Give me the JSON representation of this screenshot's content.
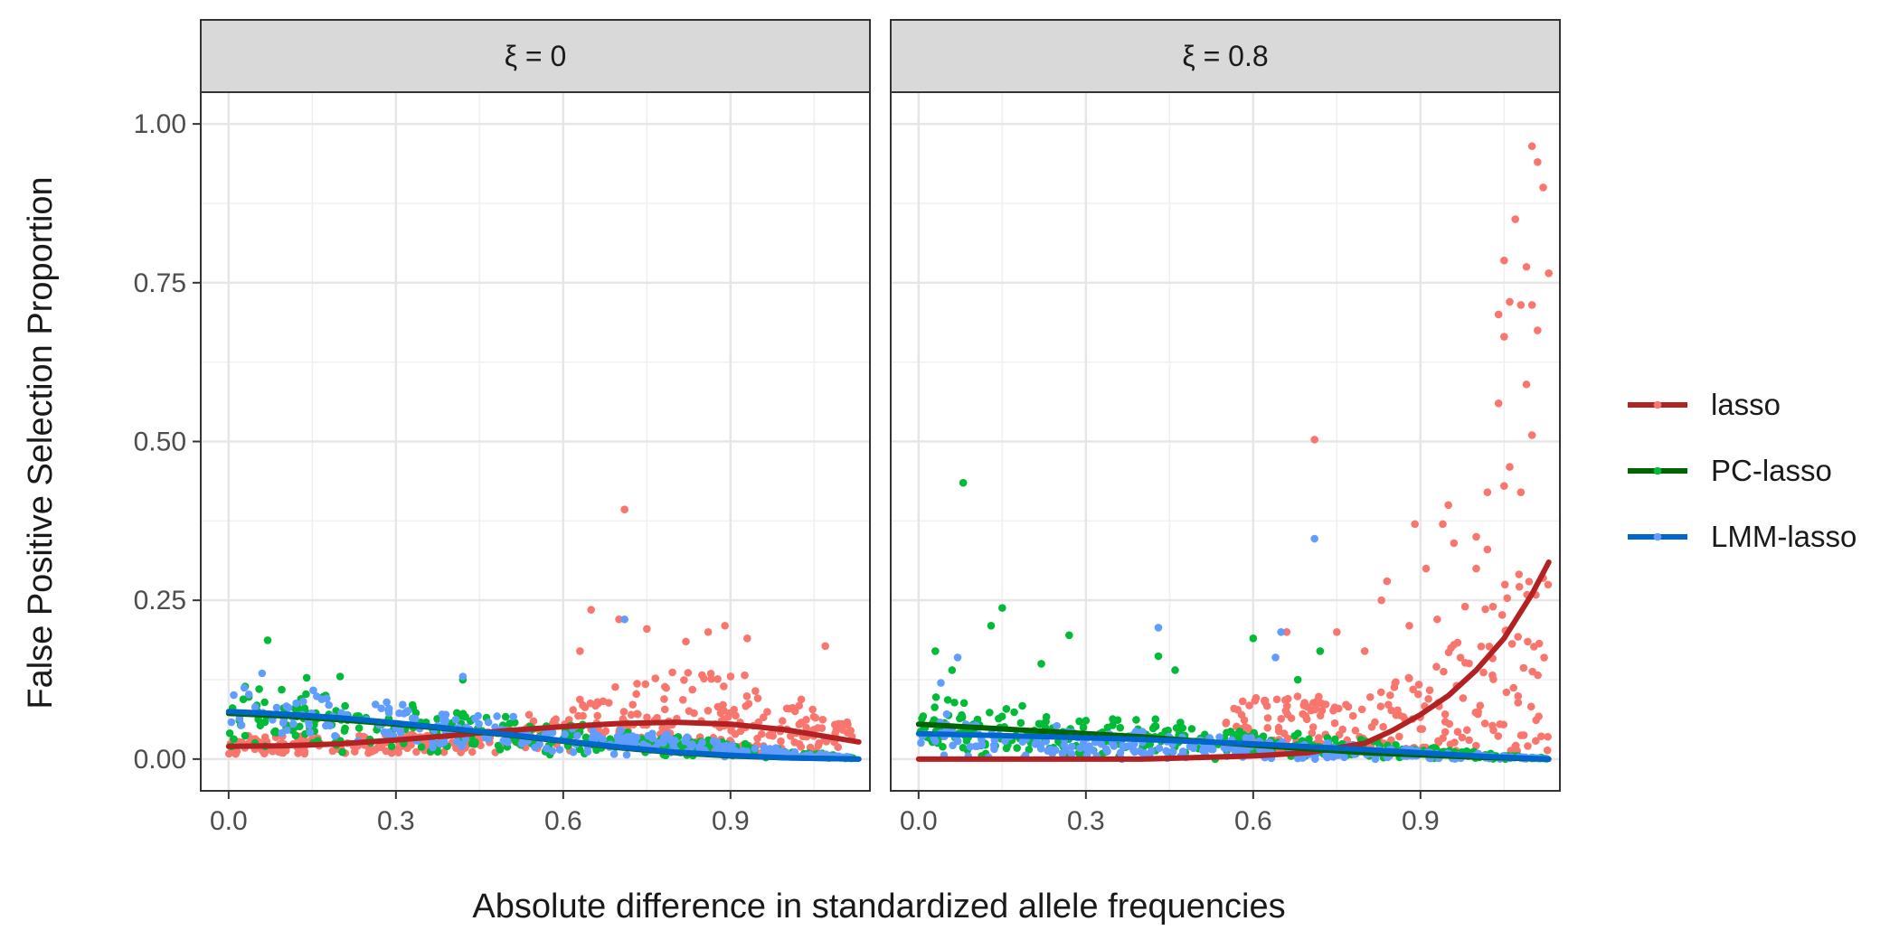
{
  "chart_data": {
    "type": "scatter",
    "title": "",
    "xlabel": "Absolute difference in standardized allele frequencies",
    "ylabel": "False Positive Selection Proportion",
    "xlim": [
      -0.05,
      1.15
    ],
    "ylim": [
      -0.05,
      1.05
    ],
    "x_ticks": [
      "0.0",
      "0.3",
      "0.6",
      "0.9"
    ],
    "y_ticks": [
      "0.00",
      "0.25",
      "0.50",
      "0.75",
      "1.00"
    ],
    "grid": true,
    "legend_position": "right",
    "series": [
      {
        "name": "lasso",
        "color": "#B22222",
        "point_color": "#F8766D"
      },
      {
        "name": "PC-lasso",
        "color": "#006400",
        "point_color": "#00BA38"
      },
      {
        "name": "LMM-lasso",
        "color": "#0066CC",
        "point_color": "#619CFF"
      }
    ],
    "panels": [
      {
        "label": "ξ = 0",
        "smooth": {
          "lasso": {
            "x": [
              0.0,
              0.1,
              0.2,
              0.3,
              0.4,
              0.5,
              0.6,
              0.7,
              0.8,
              0.9,
              1.0,
              1.13
            ],
            "y": [
              0.02,
              0.021,
              0.024,
              0.03,
              0.037,
              0.045,
              0.051,
              0.056,
              0.058,
              0.055,
              0.046,
              0.027
            ]
          },
          "PC-lasso": {
            "x": [
              0.0,
              0.1,
              0.2,
              0.3,
              0.4,
              0.5,
              0.6,
              0.7,
              0.8,
              0.9,
              1.0,
              1.13
            ],
            "y": [
              0.072,
              0.068,
              0.062,
              0.055,
              0.047,
              0.038,
              0.028,
              0.018,
              0.01,
              0.005,
              0.002,
              0.0
            ]
          },
          "LMM-lasso": {
            "x": [
              0.0,
              0.1,
              0.2,
              0.3,
              0.4,
              0.5,
              0.6,
              0.7,
              0.8,
              0.9,
              1.0,
              1.13
            ],
            "y": [
              0.075,
              0.071,
              0.065,
              0.057,
              0.048,
              0.039,
              0.029,
              0.019,
              0.011,
              0.006,
              0.002,
              0.0
            ]
          }
        },
        "points": {
          "lasso": [
            [
              0.71,
              0.393
            ],
            [
              0.65,
              0.235
            ],
            [
              0.7,
              0.22
            ],
            [
              0.75,
              0.205
            ],
            [
              0.89,
              0.21
            ],
            [
              0.93,
              0.19
            ],
            [
              0.86,
              0.2
            ],
            [
              1.07,
              0.178
            ],
            [
              0.63,
              0.17
            ],
            [
              0.82,
              0.185
            ]
          ],
          "PC-lasso": [
            [
              0.07,
              0.187
            ],
            [
              0.14,
              0.128
            ],
            [
              0.2,
              0.13
            ],
            [
              0.42,
              0.125
            ]
          ],
          "LMM-lasso": [
            [
              0.71,
              0.22
            ],
            [
              0.06,
              0.135
            ],
            [
              0.42,
              0.13
            ]
          ]
        },
        "clouds": {
          "lasso": {
            "x0": 0.0,
            "x1": 1.12,
            "base": 0.02,
            "band": 0.05,
            "n": 420
          },
          "PC-lasso": {
            "x0": 0.0,
            "x1": 1.12,
            "base": 0.07,
            "band": 0.05,
            "n": 330
          },
          "LMM-lasso": {
            "x0": 0.0,
            "x1": 1.12,
            "base": 0.07,
            "band": 0.045,
            "n": 260
          }
        }
      },
      {
        "label": "ξ = 0.8",
        "smooth": {
          "lasso": {
            "x": [
              0.0,
              0.2,
              0.4,
              0.6,
              0.7,
              0.8,
              0.85,
              0.9,
              0.95,
              1.0,
              1.05,
              1.1,
              1.13
            ],
            "y": [
              0.0,
              0.0,
              0.0,
              0.005,
              0.01,
              0.025,
              0.045,
              0.07,
              0.1,
              0.14,
              0.19,
              0.26,
              0.31
            ]
          },
          "PC-lasso": {
            "x": [
              0.0,
              0.2,
              0.4,
              0.6,
              0.8,
              1.0,
              1.13
            ],
            "y": [
              0.055,
              0.045,
              0.035,
              0.022,
              0.01,
              0.003,
              0.0
            ]
          },
          "LMM-lasso": {
            "x": [
              0.0,
              0.2,
              0.4,
              0.6,
              0.8,
              1.0,
              1.13
            ],
            "y": [
              0.04,
              0.036,
              0.031,
              0.024,
              0.015,
              0.005,
              0.0
            ]
          }
        },
        "points": {
          "lasso": [
            [
              1.1,
              0.965
            ],
            [
              1.11,
              0.94
            ],
            [
              1.12,
              0.9
            ],
            [
              1.07,
              0.85
            ],
            [
              1.05,
              0.785
            ],
            [
              1.09,
              0.775
            ],
            [
              1.13,
              0.765
            ],
            [
              1.06,
              0.72
            ],
            [
              1.08,
              0.715
            ],
            [
              1.1,
              0.715
            ],
            [
              1.04,
              0.7
            ],
            [
              1.05,
              0.665
            ],
            [
              1.11,
              0.675
            ],
            [
              1.09,
              0.59
            ],
            [
              1.04,
              0.56
            ],
            [
              1.1,
              0.51
            ],
            [
              0.71,
              0.503
            ],
            [
              1.06,
              0.46
            ],
            [
              1.05,
              0.43
            ],
            [
              1.02,
              0.42
            ],
            [
              1.08,
              0.42
            ],
            [
              0.95,
              0.4
            ],
            [
              0.94,
              0.37
            ],
            [
              0.89,
              0.37
            ],
            [
              1.0,
              0.35
            ],
            [
              1.02,
              0.33
            ],
            [
              0.96,
              0.34
            ],
            [
              0.84,
              0.28
            ],
            [
              0.91,
              0.3
            ],
            [
              0.83,
              0.25
            ],
            [
              0.98,
              0.24
            ],
            [
              0.93,
              0.22
            ],
            [
              0.66,
              0.2
            ],
            [
              0.75,
              0.2
            ],
            [
              0.8,
              0.17
            ],
            [
              1.0,
              0.3
            ],
            [
              1.12,
              0.285
            ],
            [
              1.03,
              0.24
            ],
            [
              0.88,
              0.21
            ],
            [
              0.96,
              0.18
            ]
          ],
          "PC-lasso": [
            [
              0.08,
              0.435
            ],
            [
              0.15,
              0.238
            ],
            [
              0.13,
              0.21
            ],
            [
              0.27,
              0.195
            ],
            [
              0.03,
              0.17
            ],
            [
              0.06,
              0.14
            ],
            [
              0.22,
              0.15
            ],
            [
              0.43,
              0.162
            ],
            [
              0.46,
              0.14
            ],
            [
              0.6,
              0.19
            ],
            [
              0.72,
              0.17
            ],
            [
              0.68,
              0.125
            ]
          ],
          "LMM-lasso": [
            [
              0.71,
              0.347
            ],
            [
              0.43,
              0.207
            ],
            [
              0.65,
              0.2
            ],
            [
              0.64,
              0.16
            ],
            [
              0.07,
              0.16
            ],
            [
              0.04,
              0.12
            ]
          ]
        },
        "clouds": {
          "lasso": {
            "x0": 0.55,
            "x1": 1.13,
            "base": 0.01,
            "band": 0.09,
            "n": 260
          },
          "PC-lasso": {
            "x0": 0.0,
            "x1": 1.13,
            "base": 0.05,
            "band": 0.06,
            "n": 380
          },
          "LMM-lasso": {
            "x0": 0.0,
            "x1": 1.13,
            "base": 0.035,
            "band": 0.045,
            "n": 300
          }
        }
      }
    ]
  }
}
